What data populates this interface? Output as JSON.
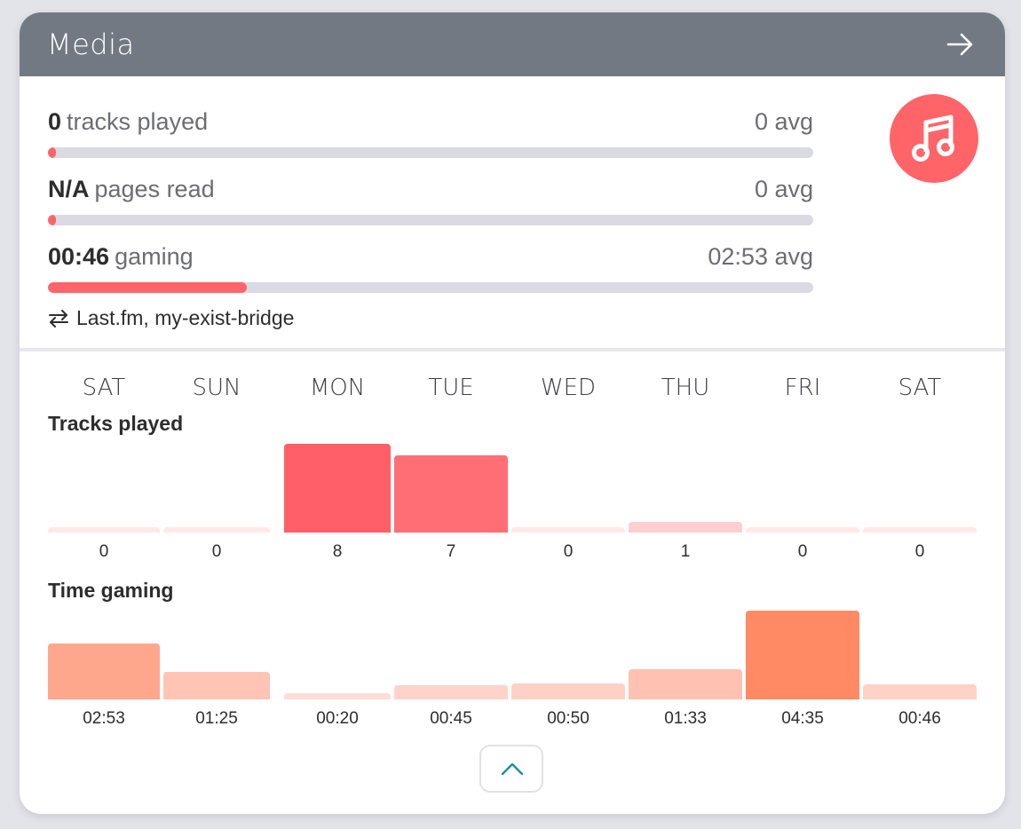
{
  "card": {
    "title": "Media"
  },
  "icons": {
    "header": "arrow-right-icon",
    "badge": "music-note-icon",
    "sources": "sync-arrows-icon",
    "collapse": "chevron-up-icon"
  },
  "colors": {
    "header_bg": "#727983",
    "accent": "#ff646b",
    "track_bg": "#d9dae2",
    "tracks_full": "#ff6068",
    "gaming_full": "#ff8a64"
  },
  "stats": [
    {
      "value": "0",
      "label": "tracks played",
      "avg": "0 avg",
      "progress": 0.01
    },
    {
      "value": "N/A",
      "label": "pages read",
      "avg": "0 avg",
      "progress": 0.01
    },
    {
      "value": "00:46",
      "label": "gaming",
      "avg": "02:53 avg",
      "progress": 0.26
    }
  ],
  "sources": "Last.fm, my-exist-bridge",
  "days": [
    "SAT",
    "SUN",
    "MON",
    "TUE",
    "WED",
    "THU",
    "FRI",
    "SAT"
  ],
  "tracks_section": {
    "title": "Tracks played"
  },
  "gaming_section": {
    "title": "Time gaming"
  },
  "chart_data": [
    {
      "type": "bar",
      "title": "Tracks played",
      "categories": [
        "SAT",
        "SUN",
        "MON",
        "TUE",
        "WED",
        "THU",
        "FRI",
        "SAT"
      ],
      "values": [
        0,
        0,
        8,
        7,
        0,
        1,
        0,
        0
      ],
      "labels": [
        "0",
        "0",
        "8",
        "7",
        "0",
        "1",
        "0",
        "0"
      ]
    },
    {
      "type": "bar",
      "title": "Time gaming",
      "categories": [
        "SAT",
        "SUN",
        "MON",
        "TUE",
        "WED",
        "THU",
        "FRI",
        "SAT"
      ],
      "values": [
        173,
        85,
        20,
        45,
        50,
        93,
        275,
        46
      ],
      "labels": [
        "02:53",
        "01:25",
        "00:20",
        "00:45",
        "00:50",
        "01:33",
        "04:35",
        "00:46"
      ]
    }
  ]
}
